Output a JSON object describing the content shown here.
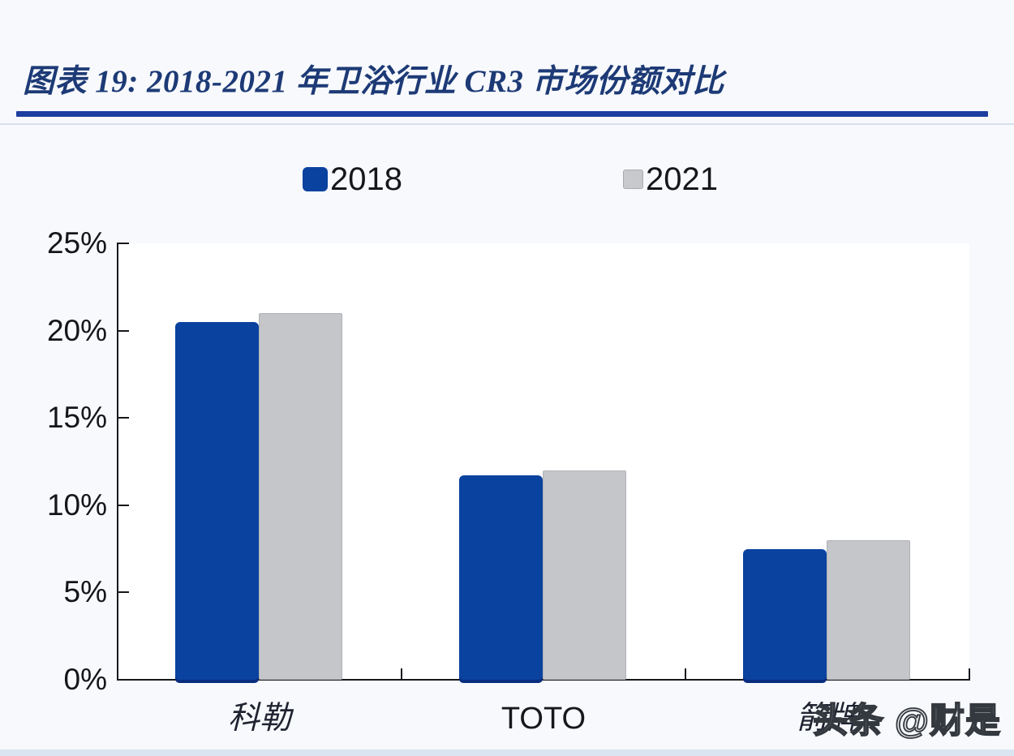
{
  "figure": {
    "title": "图表 19:  2018-2021 年卫浴行业 CR3 市场份额对比",
    "watermark": "头条 @财是"
  },
  "chart_data": {
    "type": "bar",
    "title": "2018-2021 年卫浴行业 CR3 市场份额对比",
    "categories": [
      "科勒",
      "TOTO",
      "箭牌"
    ],
    "series": [
      {
        "name": "2018",
        "color": "#0a429f",
        "values": [
          20.5,
          11.7,
          7.5
        ]
      },
      {
        "name": "2021",
        "color": "#c5c6c9",
        "values": [
          21.0,
          12.0,
          8.0
        ]
      }
    ],
    "yticks_labels": [
      "0%",
      "5%",
      "10%",
      "15%",
      "20%",
      "25%"
    ],
    "yticks_values": [
      0,
      5,
      10,
      15,
      20,
      25
    ],
    "ylim": [
      0,
      25
    ],
    "grid": false,
    "legend_position": "top",
    "unit": "%"
  }
}
